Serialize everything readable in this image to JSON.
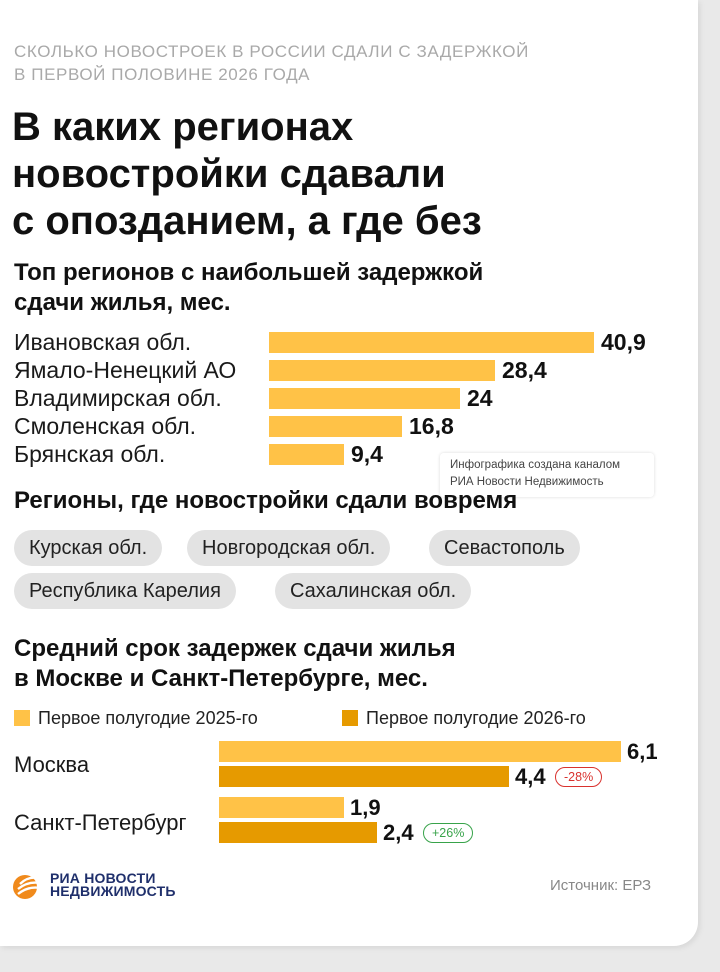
{
  "header": {
    "kicker_line1": "Сколько новостроек в России сдали с задержкой",
    "kicker_line2": "в первой половине 2026 года",
    "title_line1": "В каких регионах",
    "title_line2": "новостройки сдавали",
    "title_line3": "с опозданием, а где без"
  },
  "section1": {
    "title_line1": "Топ регионов с наибольшей задержкой",
    "title_line2": "сдачи жилья, мес."
  },
  "section2": {
    "title": "Регионы, где новостройки сдали вовремя",
    "chips": [
      "Курская обл.",
      "Новгородская обл.",
      "Севастополь",
      "Республика Карелия",
      "Сахалинская обл."
    ]
  },
  "section3": {
    "title_line1": "Средний срок задержек сдачи жилья",
    "title_line2": "в Москве и Санкт-Петербурге, мес.",
    "changes": [
      "-28%",
      "+26%"
    ]
  },
  "watermark": {
    "line1": "Инфографика создана каналом",
    "line2": "РИА Новости Недвижимость"
  },
  "footer": {
    "logo_line1": "РИА НОВОСТИ",
    "logo_line2": "НЕДВИЖИМОСТЬ",
    "source": "Источник: ЕРЗ"
  },
  "colors": {
    "bar_light": "#ffc247",
    "bar_dark": "#e69a00",
    "negative": "#d9322e",
    "positive": "#38a34a",
    "logo_orange": "#f08a1c",
    "logo_blue": "#1f2f6b"
  },
  "icons": [
    "ria-novosti-logo-icon"
  ],
  "chart_data": [
    {
      "type": "bar",
      "orientation": "horizontal",
      "categories": [
        "Ивановская обл.",
        "Ямало-Ненецкий АО",
        "Владимирская обл.",
        "Смоленская обл.",
        "Брянская обл."
      ],
      "values": [
        40.9,
        28.4,
        24,
        16.8,
        9.4
      ],
      "value_labels": [
        "40,9",
        "28,4",
        "24",
        "16,8",
        "9,4"
      ],
      "xlim": [
        0,
        40.9
      ]
    },
    {
      "type": "bar",
      "orientation": "horizontal",
      "categories": [
        "Москва",
        "Санкт-Петербург"
      ],
      "series": [
        {
          "name": "Первое полугодие 2025-го",
          "values": [
            6.1,
            1.9
          ],
          "labels": [
            "6,1",
            "1,9"
          ]
        },
        {
          "name": "Первое полугодие 2026-го",
          "values": [
            4.4,
            2.4
          ],
          "labels": [
            "4,4",
            "2,4"
          ]
        }
      ],
      "legend": "top-left",
      "xlim": [
        0,
        6.1
      ]
    }
  ]
}
